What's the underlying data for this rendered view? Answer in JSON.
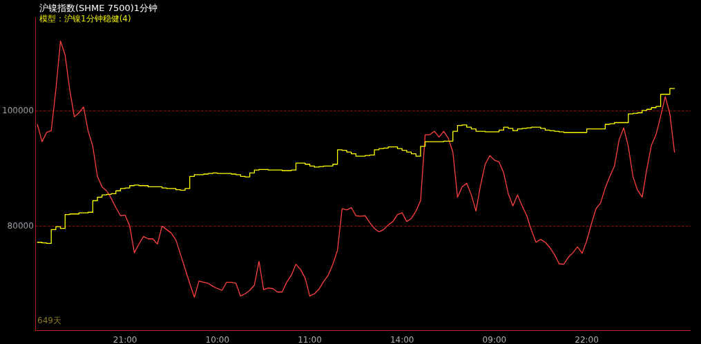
{
  "chart_data": {
    "type": "line",
    "title": "沪镍指数(SHME 7500)1分钟",
    "subtitle": "模型：沪镍1分钟稳健(4)",
    "annotations": [
      "649天"
    ],
    "categories": [
      null,
      null,
      null,
      null,
      null,
      null,
      null,
      null,
      null,
      null,
      null,
      null,
      null,
      null,
      null,
      null,
      null,
      null,
      null,
      "21:00",
      null,
      null,
      null,
      null,
      null,
      null,
      null,
      null,
      null,
      null,
      null,
      null,
      null,
      null,
      null,
      null,
      null,
      null,
      null,
      "10:00",
      null,
      null,
      null,
      null,
      null,
      null,
      null,
      null,
      null,
      null,
      null,
      null,
      null,
      null,
      null,
      null,
      null,
      null,
      null,
      "11:00",
      null,
      null,
      null,
      null,
      null,
      null,
      null,
      null,
      null,
      null,
      null,
      null,
      null,
      null,
      null,
      null,
      null,
      null,
      null,
      "14:00",
      null,
      null,
      null,
      null,
      null,
      null,
      null,
      null,
      null,
      null,
      null,
      null,
      null,
      null,
      null,
      null,
      null,
      null,
      null,
      "09:00",
      null,
      null,
      null,
      null,
      null,
      null,
      null,
      null,
      null,
      null,
      null,
      null,
      null,
      null,
      null,
      null,
      null,
      null,
      null,
      "22:00",
      null,
      null,
      null,
      null,
      null,
      null,
      null,
      null,
      null,
      null,
      null,
      null,
      null,
      null,
      null,
      null,
      null,
      null,
      null,
      null,
      null,
      null
    ],
    "series": [
      {
        "color": "#ff4040",
        "values": [
          97600,
          94600,
          96200,
          96500,
          103600,
          112000,
          109600,
          103600,
          98900,
          99600,
          100600,
          96400,
          93800,
          88600,
          86800,
          86100,
          84800,
          83200,
          81800,
          81900,
          80000,
          75400,
          76900,
          78200,
          77800,
          77800,
          76900,
          80000,
          79400,
          78800,
          77600,
          75100,
          72600,
          70100,
          67700,
          70500,
          70300,
          70100,
          69600,
          69200,
          68900,
          70300,
          70300,
          70100,
          67900,
          68300,
          68900,
          69800,
          73900,
          69000,
          69300,
          69200,
          68600,
          68600,
          70300,
          71500,
          73400,
          72500,
          71000,
          67900,
          68300,
          69100,
          70400,
          71500,
          73400,
          75800,
          83000,
          82800,
          83200,
          81800,
          81700,
          81800,
          80600,
          79600,
          79000,
          79400,
          80200,
          80800,
          82000,
          82300,
          80800,
          81300,
          82600,
          84400,
          95800,
          95800,
          96400,
          95400,
          96400,
          95200,
          92800,
          85000,
          86800,
          87400,
          85400,
          82600,
          87100,
          90700,
          92200,
          91400,
          91100,
          89200,
          85600,
          83500,
          85400,
          83500,
          81800,
          79300,
          77200,
          77700,
          77200,
          76300,
          75100,
          73500,
          73400,
          74600,
          75400,
          76400,
          75300,
          77500,
          80400,
          83000,
          84000,
          86600,
          88600,
          90400,
          94900,
          97000,
          93800,
          88600,
          86200,
          85000,
          89800,
          94000,
          95800,
          99000,
          102400,
          99400,
          92800,
          null,
          null,
          null
        ]
      },
      {
        "type": "step",
        "color": "#ffff00",
        "values": [
          77200,
          77200,
          77100,
          77000,
          79400,
          79900,
          79600,
          82000,
          82100,
          82100,
          82300,
          82300,
          82400,
          84400,
          85000,
          85400,
          85500,
          85600,
          86100,
          86500,
          86600,
          87000,
          87100,
          87000,
          87000,
          86800,
          86800,
          86800,
          86600,
          86500,
          86500,
          86300,
          86200,
          86500,
          88600,
          88900,
          88900,
          89000,
          89100,
          89200,
          89100,
          89100,
          89100,
          89000,
          88900,
          88600,
          88500,
          89200,
          89700,
          89800,
          89800,
          89700,
          89700,
          89700,
          89600,
          89600,
          89700,
          90900,
          90900,
          90700,
          90400,
          90200,
          90300,
          90400,
          90400,
          90700,
          93200,
          93100,
          92800,
          92500,
          92100,
          92100,
          92200,
          92300,
          93200,
          93400,
          93500,
          93700,
          93700,
          93400,
          93100,
          92800,
          92500,
          92100,
          93800,
          94600,
          94600,
          94600,
          94600,
          94700,
          94700,
          96400,
          97400,
          97500,
          97100,
          96800,
          96400,
          96400,
          96300,
          96300,
          96300,
          96600,
          97100,
          96900,
          96500,
          96800,
          96900,
          97000,
          97100,
          97100,
          96900,
          96600,
          96500,
          96400,
          96300,
          96200,
          96200,
          96200,
          96200,
          96200,
          96800,
          96800,
          96800,
          96800,
          97600,
          97700,
          97900,
          97900,
          97900,
          99400,
          99500,
          99600,
          100000,
          100200,
          100500,
          100700,
          102800,
          102800,
          103800,
          null,
          null,
          null
        ]
      }
    ],
    "ylim": [
      62000,
      116000
    ],
    "yticks": [
      80000,
      100000
    ],
    "grid": "y",
    "marker": "none"
  }
}
